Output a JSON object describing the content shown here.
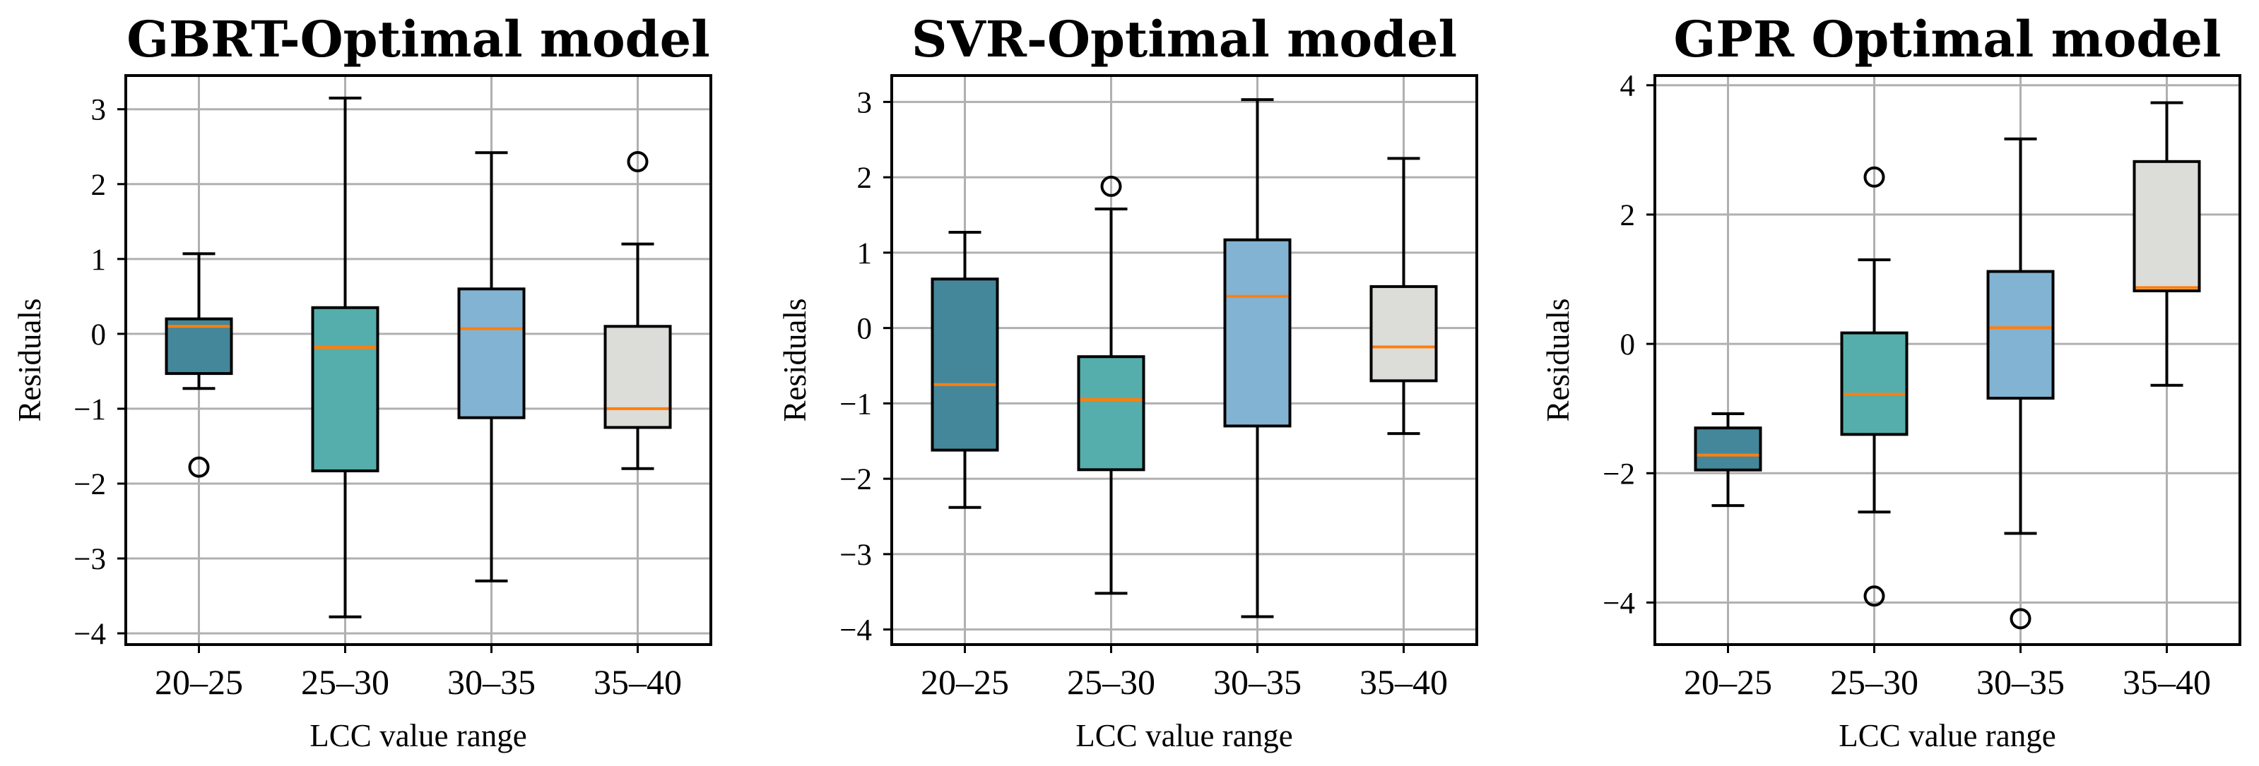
{
  "chart_data": [
    {
      "type": "boxplot",
      "title": "GBRT-Optimal model",
      "xlabel": "LCC value range",
      "ylabel": "Residuals",
      "ylim": [
        -4.15,
        3.45
      ],
      "yticks": [
        3,
        2,
        1,
        0,
        -1,
        -2,
        -3,
        -4
      ],
      "ytick_labels": [
        "3",
        "2",
        "1",
        "0",
        "−1",
        "−2",
        "−3",
        "−4"
      ],
      "categories": [
        "20–25",
        "25–30",
        "30–35",
        "35–40"
      ],
      "grid": true,
      "boxes": [
        {
          "whislo": -0.73,
          "q1": -0.53,
          "med": 0.1,
          "q3": 0.2,
          "whishi": 1.07,
          "fliers": [
            -1.78
          ]
        },
        {
          "whislo": -3.78,
          "q1": -1.83,
          "med": -0.18,
          "q3": 0.35,
          "whishi": 3.15,
          "fliers": []
        },
        {
          "whislo": -3.3,
          "q1": -1.12,
          "med": 0.07,
          "q3": 0.6,
          "whishi": 2.42,
          "fliers": []
        },
        {
          "whislo": -1.8,
          "q1": -1.25,
          "med": -1.0,
          "q3": 0.1,
          "whishi": 1.2,
          "fliers": [
            2.3
          ]
        }
      ]
    },
    {
      "type": "boxplot",
      "title": "SVR-Optimal model",
      "xlabel": "LCC value range",
      "ylabel": "Residuals",
      "ylim": [
        -4.2,
        3.35
      ],
      "yticks": [
        3,
        2,
        1,
        0,
        -1,
        -2,
        -3,
        -4
      ],
      "ytick_labels": [
        "3",
        "2",
        "1",
        "0",
        "−1",
        "−2",
        "−3",
        "−4"
      ],
      "categories": [
        "20–25",
        "25–30",
        "30–35",
        "35–40"
      ],
      "grid": true,
      "boxes": [
        {
          "whislo": -2.38,
          "q1": -1.62,
          "med": -0.75,
          "q3": 0.65,
          "whishi": 1.27,
          "fliers": []
        },
        {
          "whislo": -3.52,
          "q1": -1.88,
          "med": -0.95,
          "q3": -0.38,
          "whishi": 1.58,
          "fliers": [
            1.88
          ]
        },
        {
          "whislo": -3.83,
          "q1": -1.3,
          "med": 0.42,
          "q3": 1.17,
          "whishi": 3.03,
          "fliers": []
        },
        {
          "whislo": -1.4,
          "q1": -0.7,
          "med": -0.25,
          "q3": 0.55,
          "whishi": 2.25,
          "fliers": []
        }
      ]
    },
    {
      "type": "boxplot",
      "title": "GPR Optimal model",
      "xlabel": "LCC value range",
      "ylabel": "Residuals",
      "ylim": [
        -4.65,
        4.15
      ],
      "yticks": [
        4,
        2,
        0,
        -2,
        -4
      ],
      "ytick_labels": [
        "4",
        "2",
        "0",
        "−2",
        "−4"
      ],
      "categories": [
        "20–25",
        "25–30",
        "30–35",
        "35–40"
      ],
      "grid": true,
      "boxes": [
        {
          "whislo": -2.5,
          "q1": -1.95,
          "med": -1.72,
          "q3": -1.3,
          "whishi": -1.08,
          "fliers": []
        },
        {
          "whislo": -2.6,
          "q1": -1.4,
          "med": -0.78,
          "q3": 0.17,
          "whishi": 1.3,
          "fliers": [
            2.58,
            -3.9
          ]
        },
        {
          "whislo": -2.93,
          "q1": -0.84,
          "med": 0.25,
          "q3": 1.12,
          "whishi": 3.17,
          "fliers": [
            -4.25
          ]
        },
        {
          "whislo": -0.64,
          "q1": 0.82,
          "med": 0.87,
          "q3": 2.82,
          "whishi": 3.73,
          "fliers": []
        }
      ]
    }
  ],
  "colors": {
    "box_fills": [
      "#45879a",
      "#55aeab",
      "#82b3d3",
      "#dcdcd8"
    ],
    "median": "#ff7f0e",
    "grid": "#b0b0b0"
  }
}
